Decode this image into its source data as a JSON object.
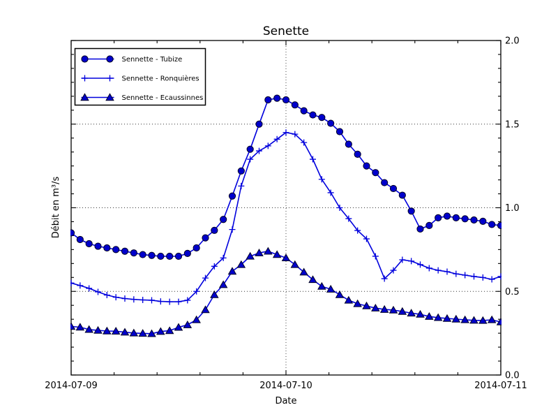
{
  "chart_data": {
    "type": "line",
    "title": "Senette",
    "xlabel": "Date",
    "ylabel": "Débit en m³/s",
    "x_tick_labels": [
      "2014-07-09",
      "2014-07-10",
      "2014-07-11"
    ],
    "y_tick_labels": [
      "0.0",
      "0.5",
      "1.0",
      "1.5",
      "2.0"
    ],
    "ylim": [
      0.0,
      2.0
    ],
    "y_major_step": 0.5,
    "x_interval_hours": 1,
    "x_span_hours": 48,
    "grid": "dotted",
    "legend_position": "upper-left",
    "series": [
      {
        "name": "Sennette - Tubize",
        "marker": "circle",
        "values": [
          0.85,
          0.81,
          0.785,
          0.77,
          0.76,
          0.75,
          0.74,
          0.73,
          0.72,
          0.715,
          0.71,
          0.71,
          0.71,
          0.727,
          0.76,
          0.82,
          0.865,
          0.93,
          1.07,
          1.22,
          1.35,
          1.5,
          1.645,
          1.655,
          1.645,
          1.615,
          1.58,
          1.555,
          1.54,
          1.505,
          1.455,
          1.38,
          1.32,
          1.25,
          1.21,
          1.15,
          1.115,
          1.075,
          0.98,
          0.873,
          0.894,
          0.94,
          0.95,
          0.94,
          0.934,
          0.927,
          0.919,
          0.9,
          0.894
        ]
      },
      {
        "name": "Sennette - Ronquières",
        "marker": "plus",
        "values": [
          0.55,
          0.535,
          0.518,
          0.497,
          0.478,
          0.465,
          0.457,
          0.452,
          0.449,
          0.447,
          0.44,
          0.438,
          0.438,
          0.447,
          0.5,
          0.58,
          0.65,
          0.7,
          0.87,
          1.13,
          1.29,
          1.34,
          1.37,
          1.41,
          1.45,
          1.44,
          1.39,
          1.29,
          1.17,
          1.09,
          1.0,
          0.935,
          0.864,
          0.814,
          0.71,
          0.576,
          0.626,
          0.689,
          0.681,
          0.66,
          0.639,
          0.626,
          0.618,
          0.605,
          0.597,
          0.589,
          0.583,
          0.572,
          0.589
        ]
      },
      {
        "name": "Sennette - Ecaussinnes",
        "marker": "triangle",
        "values": [
          0.29,
          0.286,
          0.272,
          0.267,
          0.263,
          0.262,
          0.256,
          0.251,
          0.249,
          0.247,
          0.26,
          0.265,
          0.285,
          0.3,
          0.33,
          0.39,
          0.48,
          0.54,
          0.62,
          0.66,
          0.71,
          0.73,
          0.74,
          0.72,
          0.7,
          0.66,
          0.615,
          0.57,
          0.53,
          0.513,
          0.48,
          0.447,
          0.426,
          0.413,
          0.4,
          0.392,
          0.388,
          0.38,
          0.37,
          0.363,
          0.35,
          0.343,
          0.338,
          0.334,
          0.33,
          0.327,
          0.326,
          0.33,
          0.317
        ]
      }
    ]
  },
  "colors": {
    "series_line": "#0000dd",
    "marker_fill": "#0000cc",
    "marker_edge": "#000022",
    "grid": "#333333",
    "frame": "#000000",
    "background": "#ffffff"
  }
}
